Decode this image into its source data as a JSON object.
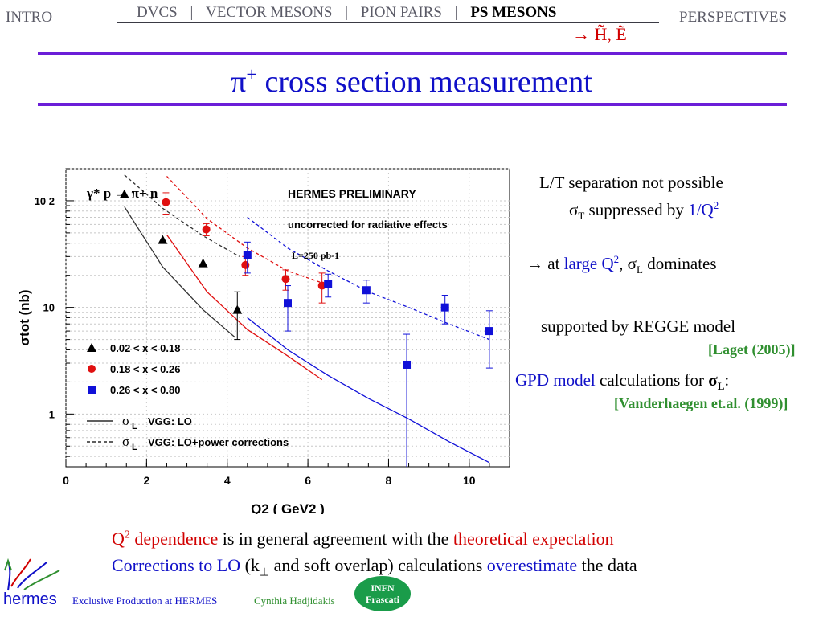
{
  "nav": {
    "intro": "INTRO",
    "items": [
      "DVCS",
      "VECTOR MESONS",
      "PION PAIRS",
      "PS MESONS"
    ],
    "separator": "|",
    "perspectives": "PERSPECTIVES",
    "sub": "→ H̃,  Ẽ"
  },
  "title": {
    "main": "π",
    "sup": "+",
    "rest": " cross section measurement"
  },
  "right": {
    "line1": "L/T separation not possible",
    "line2_sym": "σ",
    "line2_sub": "T",
    "line2_text": " suppressed by ",
    "line2_hl": "1/Q",
    "line2_sup": "2",
    "line3_arrow": "→ at ",
    "line3_hl": "large Q",
    "line3_sup": "2",
    "line3_mid": ", σ",
    "line3_sub": "L",
    "line3_end": " dominates",
    "line4": "supported by REGGE model",
    "cite1": "[Laget (2005)]",
    "line5_hl": "GPD model",
    "line5_text": " calculations for ",
    "line5_sym": "σ",
    "line5_sub": "L",
    "line5_end": ":",
    "cite2": "[Vanderhaegen et.al. (1999)]"
  },
  "bottom": {
    "l1_a": "Q",
    "l1_sup": "2",
    "l1_b": " dependence",
    "l1_c": " is in general agreement with the ",
    "l1_d": "theoretical expectation",
    "l2_a": "Corrections to LO",
    "l2_b": " (k",
    "l2_sub": "⊥",
    "l2_c": " and soft overlap) calculations ",
    "l2_d": "overestimate",
    "l2_e": " the data"
  },
  "footer": {
    "left": "Exclusive Production at HERMES",
    "mid": "Cynthia Hadjidakis",
    "logo": "hermes",
    "infn_1": "INFN",
    "infn_2": "Frascati"
  },
  "colors": {
    "accent": "#1010c8",
    "highlight": "#d10000",
    "rule": "#6b1ed8",
    "cite": "#2f8f2f"
  },
  "chart_data": {
    "type": "scatter",
    "reaction": "γ* p → π+ n",
    "header": "HERMES PRELIMINARY",
    "subheader": "uncorrected for radiative effects",
    "lumi": "L=250 pb-1",
    "xlabel": "Q2  ( GeV2 )",
    "ylabel": "σtot  (nb)",
    "xlim": [
      0,
      11
    ],
    "ylim": [
      0.32,
      200
    ],
    "yscale": "log",
    "xticks": [
      0,
      2,
      4,
      6,
      8,
      10
    ],
    "yticks": [
      {
        "v": 1,
        "label": "1"
      },
      {
        "v": 10,
        "label": "10"
      },
      {
        "v": 100,
        "label": "10 2"
      }
    ],
    "grid": true,
    "series": [
      {
        "name": "0.02 < x < 0.18",
        "marker": "triangle",
        "color": "#000000",
        "points": [
          [
            1.45,
            115,
            0
          ],
          [
            2.4,
            43,
            0
          ],
          [
            3.4,
            26,
            0
          ],
          [
            4.25,
            9.5,
            4.5
          ]
        ]
      },
      {
        "name": "0.18 < x < 0.26",
        "marker": "circle",
        "color": "#e01010",
        "points": [
          [
            2.48,
            97,
            22
          ],
          [
            3.48,
            54,
            7
          ],
          [
            4.45,
            25,
            5
          ],
          [
            5.45,
            18.5,
            4
          ],
          [
            6.35,
            16,
            5
          ]
        ]
      },
      {
        "name": "0.26 < x < 0.80",
        "marker": "square",
        "color": "#1010d8",
        "points": [
          [
            4.5,
            31,
            10
          ],
          [
            5.5,
            11,
            5
          ],
          [
            6.5,
            16.5,
            4
          ],
          [
            7.45,
            14.5,
            3.5
          ],
          [
            8.45,
            2.9,
            2.7
          ],
          [
            9.4,
            10,
            3
          ],
          [
            10.5,
            6,
            3.3
          ]
        ]
      }
    ],
    "curves": [
      {
        "name": "σL  VGG: LO",
        "style": "solid",
        "color": "#333333",
        "pts": [
          [
            1.45,
            88
          ],
          [
            2.4,
            24
          ],
          [
            3.4,
            9.5
          ],
          [
            4.2,
            5.2
          ]
        ]
      },
      {
        "name": "σL  VGG: LO",
        "style": "solid",
        "color": "#e01010",
        "pts": [
          [
            2.5,
            48
          ],
          [
            3.5,
            14
          ],
          [
            4.5,
            6.2
          ],
          [
            5.5,
            3.5
          ],
          [
            6.35,
            2.1
          ]
        ]
      },
      {
        "name": "σL  VGG: LO",
        "style": "solid",
        "color": "#1010d8",
        "pts": [
          [
            4.5,
            8
          ],
          [
            5.5,
            4
          ],
          [
            6.5,
            2.3
          ],
          [
            7.5,
            1.4
          ],
          [
            8.5,
            0.9
          ],
          [
            9.5,
            0.55
          ],
          [
            10.5,
            0.35
          ]
        ]
      },
      {
        "name": "σL  VGG: LO+power corrections",
        "style": "dashed",
        "color": "#333333",
        "pts": [
          [
            1.45,
            175
          ],
          [
            2.4,
            85
          ],
          [
            3.4,
            47
          ],
          [
            4.3,
            30
          ]
        ]
      },
      {
        "name": "σL  VGG: LO+power corrections",
        "style": "dashed",
        "color": "#e01010",
        "pts": [
          [
            2.5,
            170
          ],
          [
            3.5,
            68
          ],
          [
            4.5,
            36
          ],
          [
            5.5,
            22
          ],
          [
            6.35,
            17
          ]
        ]
      },
      {
        "name": "σL  VGG: LO+power corrections",
        "style": "dashed",
        "color": "#1010d8",
        "pts": [
          [
            4.5,
            70
          ],
          [
            5.5,
            36
          ],
          [
            6.5,
            22
          ],
          [
            7.5,
            14
          ],
          [
            8.5,
            10
          ],
          [
            9.5,
            7
          ],
          [
            10.5,
            5
          ]
        ]
      }
    ],
    "legend": [
      {
        "marker": "triangle",
        "color": "#000000",
        "label": "0.02 < x < 0.18"
      },
      {
        "marker": "circle",
        "color": "#e01010",
        "label": "0.18 < x < 0.26"
      },
      {
        "marker": "square",
        "color": "#1010d8",
        "label": "0.26 < x < 0.80"
      },
      {
        "line": "solid",
        "sym": "σ",
        "sub": "L",
        "label": "VGG: LO"
      },
      {
        "line": "dashed",
        "sym": "σ",
        "sub": "L",
        "label": "VGG: LO+power corrections"
      }
    ]
  }
}
